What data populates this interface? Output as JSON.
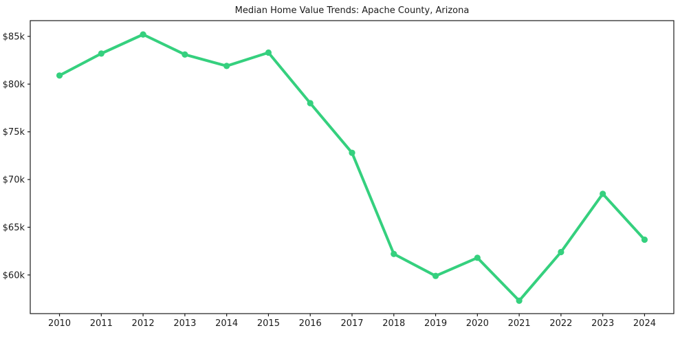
{
  "chart_data": {
    "type": "line",
    "title": "Median Home Value Trends: Apache County, Arizona",
    "series_name": "Median Home Value",
    "categories": [
      2010,
      2011,
      2012,
      2013,
      2014,
      2015,
      2016,
      2017,
      2018,
      2019,
      2020,
      2021,
      2022,
      2023,
      2024
    ],
    "x_tick_labels": [
      "2010",
      "2011",
      "2012",
      "2013",
      "2014",
      "2015",
      "2016",
      "2017",
      "2018",
      "2019",
      "2020",
      "2021",
      "2022",
      "2023",
      "2024"
    ],
    "values": [
      80900,
      83200,
      85200,
      83100,
      81900,
      83300,
      78000,
      72800,
      62200,
      59900,
      61800,
      57300,
      62400,
      68500,
      63700
    ],
    "y_ticks": [
      {
        "value": 60000,
        "label": "$60k"
      },
      {
        "value": 65000,
        "label": "$65k"
      },
      {
        "value": 70000,
        "label": "$70k"
      },
      {
        "value": 75000,
        "label": "$75k"
      },
      {
        "value": 80000,
        "label": "$80k"
      },
      {
        "value": 85000,
        "label": "$85k"
      }
    ],
    "xlim": [
      2009.3,
      2024.7
    ],
    "ylim": [
      55950,
      86650
    ],
    "xlabel": "",
    "ylabel": "",
    "grid": false,
    "legend": "none",
    "frame": true,
    "line_color": "#35d07e",
    "marker": "circle",
    "axis_color": "#1a1a1a",
    "text_color": "#1a1a1a",
    "background_color": "#ffffff"
  }
}
